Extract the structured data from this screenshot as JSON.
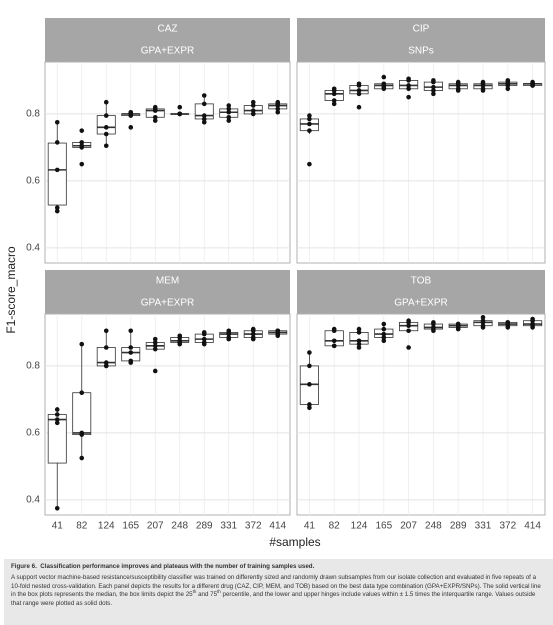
{
  "shared": {
    "categories": [
      "41",
      "82",
      "124",
      "165",
      "207",
      "248",
      "289",
      "331",
      "372",
      "414"
    ],
    "x_label": "#samples",
    "y_label": "F1-score_macro"
  },
  "chart_data": [
    {
      "type": "box",
      "title": "CAZ",
      "subtitle": "GPA+EXPR",
      "ylim": [
        0.355,
        0.955
      ],
      "yticks": [
        0.4,
        0.6,
        0.8
      ],
      "grid": true,
      "boxes": [
        {
          "min": 0.51,
          "q1": 0.528,
          "median": 0.633,
          "q3": 0.713,
          "max": 0.775
        },
        {
          "min": 0.7,
          "q1": 0.7,
          "median": 0.705,
          "q3": 0.715,
          "max": 0.715
        },
        {
          "min": 0.705,
          "q1": 0.74,
          "median": 0.76,
          "q3": 0.795,
          "max": 0.835
        },
        {
          "min": 0.795,
          "q1": 0.795,
          "median": 0.8,
          "q3": 0.8,
          "max": 0.805
        },
        {
          "min": 0.78,
          "q1": 0.79,
          "median": 0.81,
          "q3": 0.815,
          "max": 0.82
        },
        {
          "min": 0.8,
          "q1": 0.8,
          "median": 0.8,
          "q3": 0.8,
          "max": 0.8
        },
        {
          "min": 0.775,
          "q1": 0.785,
          "median": 0.795,
          "q3": 0.83,
          "max": 0.855
        },
        {
          "min": 0.78,
          "q1": 0.79,
          "median": 0.805,
          "q3": 0.815,
          "max": 0.825
        },
        {
          "min": 0.8,
          "q1": 0.8,
          "median": 0.81,
          "q3": 0.825,
          "max": 0.835
        },
        {
          "min": 0.805,
          "q1": 0.815,
          "median": 0.825,
          "q3": 0.83,
          "max": 0.835
        }
      ],
      "points": [
        [
          0.775,
          0.715,
          0.633,
          0.52,
          0.51
        ],
        [
          0.75,
          0.715,
          0.705,
          0.7,
          0.65
        ],
        [
          0.835,
          0.795,
          0.76,
          0.74,
          0.705
        ],
        [
          0.805,
          0.8,
          0.8,
          0.795,
          0.76
        ],
        [
          0.82,
          0.815,
          0.81,
          0.79,
          0.78
        ],
        [
          0.82,
          0.8,
          0.8,
          0.8,
          0.8
        ],
        [
          0.855,
          0.83,
          0.795,
          0.785,
          0.775
        ],
        [
          0.825,
          0.815,
          0.805,
          0.79,
          0.78
        ],
        [
          0.835,
          0.825,
          0.81,
          0.8,
          0.8
        ],
        [
          0.835,
          0.83,
          0.825,
          0.815,
          0.805
        ]
      ]
    },
    {
      "type": "box",
      "title": "CIP",
      "subtitle": "SNPs",
      "ylim": [
        0.355,
        0.955
      ],
      "yticks": [
        0.4,
        0.6,
        0.8
      ],
      "grid": true,
      "boxes": [
        {
          "min": 0.74,
          "q1": 0.75,
          "median": 0.77,
          "q3": 0.785,
          "max": 0.795
        },
        {
          "min": 0.83,
          "q1": 0.84,
          "median": 0.86,
          "q3": 0.87,
          "max": 0.875
        },
        {
          "min": 0.86,
          "q1": 0.86,
          "median": 0.87,
          "q3": 0.885,
          "max": 0.89
        },
        {
          "min": 0.875,
          "q1": 0.875,
          "median": 0.885,
          "q3": 0.89,
          "max": 0.89
        },
        {
          "min": 0.875,
          "q1": 0.875,
          "median": 0.885,
          "q3": 0.9,
          "max": 0.905
        },
        {
          "min": 0.86,
          "q1": 0.87,
          "median": 0.88,
          "q3": 0.895,
          "max": 0.9
        },
        {
          "min": 0.87,
          "q1": 0.875,
          "median": 0.885,
          "q3": 0.89,
          "max": 0.895
        },
        {
          "min": 0.87,
          "q1": 0.875,
          "median": 0.885,
          "q3": 0.89,
          "max": 0.895
        },
        {
          "min": 0.875,
          "q1": 0.885,
          "median": 0.89,
          "q3": 0.895,
          "max": 0.9
        },
        {
          "min": 0.885,
          "q1": 0.885,
          "median": 0.89,
          "q3": 0.89,
          "max": 0.895
        }
      ],
      "points": [
        [
          0.795,
          0.785,
          0.77,
          0.75,
          0.65
        ],
        [
          0.875,
          0.87,
          0.86,
          0.84,
          0.83
        ],
        [
          0.89,
          0.885,
          0.87,
          0.86,
          0.82
        ],
        [
          0.91,
          0.89,
          0.885,
          0.88,
          0.875
        ],
        [
          0.905,
          0.9,
          0.885,
          0.875,
          0.85
        ],
        [
          0.9,
          0.895,
          0.88,
          0.87,
          0.86
        ],
        [
          0.895,
          0.89,
          0.885,
          0.875,
          0.87
        ],
        [
          0.895,
          0.89,
          0.885,
          0.875,
          0.87
        ],
        [
          0.9,
          0.895,
          0.89,
          0.885,
          0.875
        ],
        [
          0.895,
          0.89,
          0.89,
          0.885,
          0.885
        ]
      ]
    },
    {
      "type": "box",
      "title": "MEM",
      "subtitle": "GPA+EXPR",
      "ylim": [
        0.355,
        0.955
      ],
      "yticks": [
        0.4,
        0.6,
        0.8
      ],
      "grid": true,
      "boxes": [
        {
          "min": 0.375,
          "q1": 0.51,
          "median": 0.64,
          "q3": 0.655,
          "max": 0.67
        },
        {
          "min": 0.525,
          "q1": 0.595,
          "median": 0.6,
          "q3": 0.72,
          "max": 0.865
        },
        {
          "min": 0.8,
          "q1": 0.8,
          "median": 0.81,
          "q3": 0.855,
          "max": 0.905
        },
        {
          "min": 0.81,
          "q1": 0.815,
          "median": 0.84,
          "q3": 0.855,
          "max": 0.905
        },
        {
          "min": 0.85,
          "q1": 0.85,
          "median": 0.86,
          "q3": 0.87,
          "max": 0.88
        },
        {
          "min": 0.865,
          "q1": 0.87,
          "median": 0.875,
          "q3": 0.885,
          "max": 0.89
        },
        {
          "min": 0.865,
          "q1": 0.87,
          "median": 0.88,
          "q3": 0.895,
          "max": 0.9
        },
        {
          "min": 0.88,
          "q1": 0.885,
          "median": 0.895,
          "q3": 0.9,
          "max": 0.905
        },
        {
          "min": 0.88,
          "q1": 0.885,
          "median": 0.895,
          "q3": 0.905,
          "max": 0.91
        },
        {
          "min": 0.89,
          "q1": 0.895,
          "median": 0.9,
          "q3": 0.905,
          "max": 0.905
        }
      ],
      "points": [
        [
          0.67,
          0.655,
          0.64,
          0.63,
          0.375
        ],
        [
          0.865,
          0.72,
          0.6,
          0.595,
          0.525
        ],
        [
          0.905,
          0.855,
          0.81,
          0.8,
          0.8
        ],
        [
          0.905,
          0.855,
          0.84,
          0.815,
          0.81
        ],
        [
          0.88,
          0.87,
          0.86,
          0.85,
          0.785
        ],
        [
          0.89,
          0.885,
          0.875,
          0.87,
          0.865
        ],
        [
          0.9,
          0.895,
          0.88,
          0.87,
          0.865
        ],
        [
          0.905,
          0.9,
          0.895,
          0.885,
          0.88
        ],
        [
          0.91,
          0.905,
          0.895,
          0.885,
          0.88
        ],
        [
          0.905,
          0.905,
          0.9,
          0.895,
          0.89
        ]
      ]
    },
    {
      "type": "box",
      "title": "TOB",
      "subtitle": "GPA+EXPR",
      "ylim": [
        0.355,
        0.955
      ],
      "yticks": [
        0.4,
        0.6,
        0.8
      ],
      "grid": true,
      "boxes": [
        {
          "min": 0.675,
          "q1": 0.685,
          "median": 0.745,
          "q3": 0.8,
          "max": 0.84
        },
        {
          "min": 0.86,
          "q1": 0.86,
          "median": 0.875,
          "q3": 0.905,
          "max": 0.91
        },
        {
          "min": 0.855,
          "q1": 0.865,
          "median": 0.875,
          "q3": 0.9,
          "max": 0.91
        },
        {
          "min": 0.875,
          "q1": 0.885,
          "median": 0.895,
          "q3": 0.91,
          "max": 0.925
        },
        {
          "min": 0.905,
          "q1": 0.905,
          "median": 0.92,
          "q3": 0.93,
          "max": 0.935
        },
        {
          "min": 0.905,
          "q1": 0.91,
          "median": 0.915,
          "q3": 0.925,
          "max": 0.93
        },
        {
          "min": 0.91,
          "q1": 0.915,
          "median": 0.92,
          "q3": 0.925,
          "max": 0.925
        },
        {
          "min": 0.915,
          "q1": 0.92,
          "median": 0.93,
          "q3": 0.935,
          "max": 0.945
        },
        {
          "min": 0.915,
          "q1": 0.92,
          "median": 0.925,
          "q3": 0.93,
          "max": 0.93
        },
        {
          "min": 0.915,
          "q1": 0.92,
          "median": 0.925,
          "q3": 0.935,
          "max": 0.94
        }
      ],
      "points": [
        [
          0.84,
          0.8,
          0.745,
          0.685,
          0.675
        ],
        [
          0.91,
          0.905,
          0.875,
          0.86,
          0.86
        ],
        [
          0.91,
          0.9,
          0.875,
          0.865,
          0.855
        ],
        [
          0.925,
          0.91,
          0.895,
          0.885,
          0.875
        ],
        [
          0.935,
          0.93,
          0.92,
          0.905,
          0.855
        ],
        [
          0.93,
          0.925,
          0.915,
          0.91,
          0.905
        ],
        [
          0.925,
          0.925,
          0.92,
          0.915,
          0.91
        ],
        [
          0.945,
          0.935,
          0.93,
          0.92,
          0.915
        ],
        [
          0.93,
          0.93,
          0.925,
          0.92,
          0.915
        ],
        [
          0.94,
          0.935,
          0.925,
          0.92,
          0.915
        ]
      ]
    }
  ],
  "caption": {
    "label": "Figure 6.",
    "title": "Classification performance improves and plateaus with the number of training samples used.",
    "body": [
      "A support vector machine-based resistance/susceptibility classifier was trained on differently sized and randomly drawn subsamples from our isolate collection and evaluated in five repeats of a 10-fold nested cross-validation. Each panel depicts the results for a different drug (CAZ, CIP, MEM, and TOB) based on the best data type combination (GPA+EXPR/SNPs). The solid vertical line in the box plots represents the median, the box limits depict the 25",
      "th",
      " and 75",
      "th",
      " percentile, and the lower and upper hinges include values within ± 1.5 times the interquartile range. Values outside that range were plotted as solid dots."
    ]
  }
}
